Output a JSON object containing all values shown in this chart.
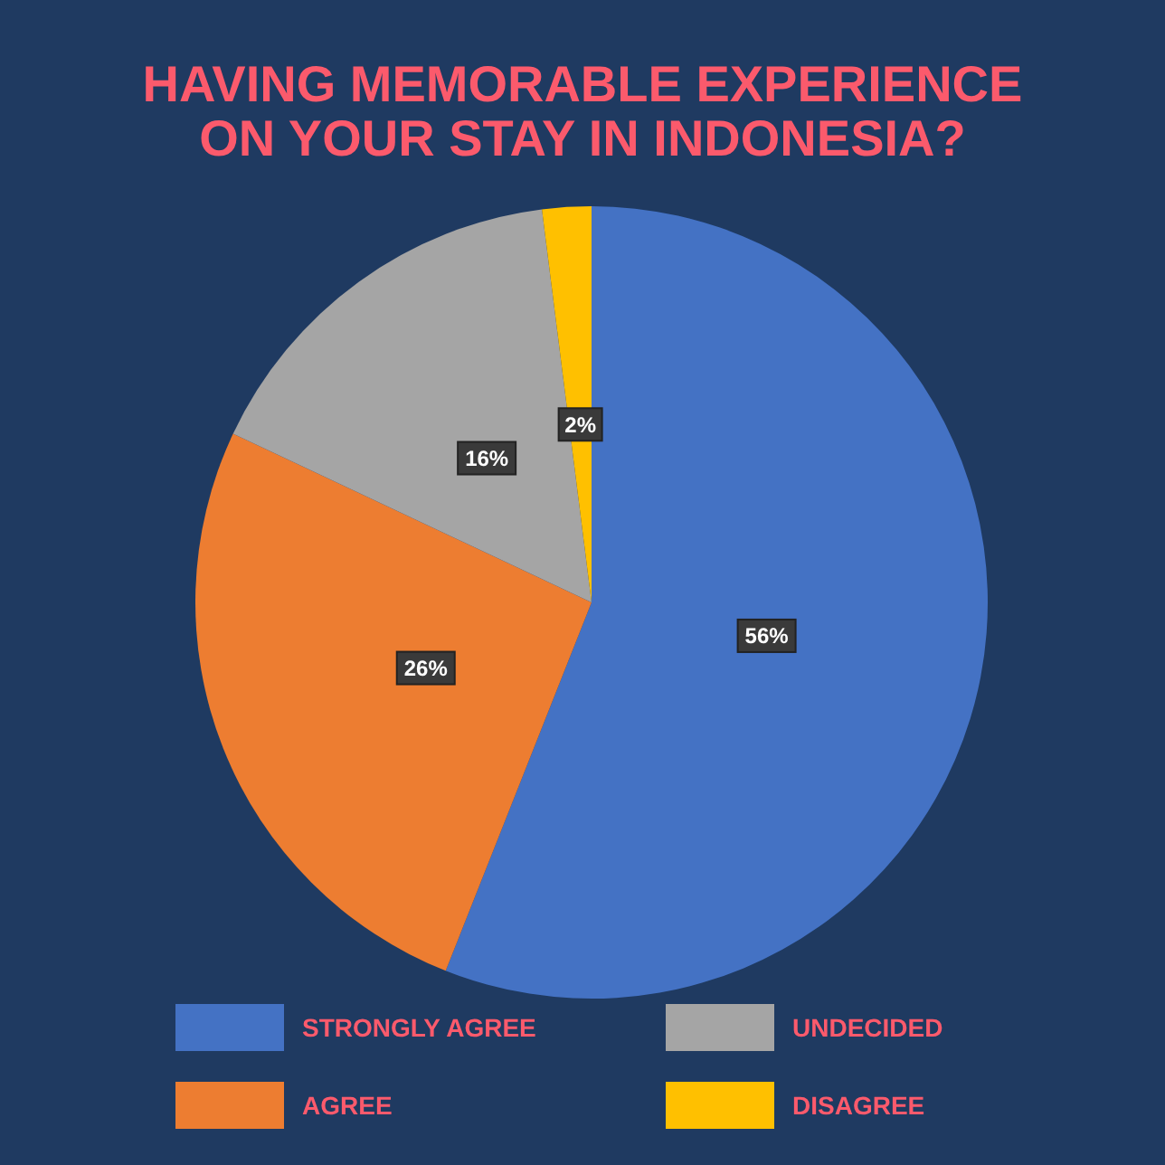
{
  "chart_data": {
    "type": "pie",
    "title": "HAVING MEMORABLE EXPERIENCE\nON YOUR STAY IN INDONESIA?",
    "categories": [
      "STRONGLY AGREE",
      "AGREE",
      "UNDECIDED",
      "DISAGREE"
    ],
    "values": [
      56,
      26,
      16,
      2
    ],
    "colors": [
      "#4472c4",
      "#ed7d31",
      "#a5a5a5",
      "#ffc000"
    ],
    "value_labels": [
      "56%",
      "26%",
      "16%",
      "2%"
    ],
    "legend": "bottom"
  }
}
